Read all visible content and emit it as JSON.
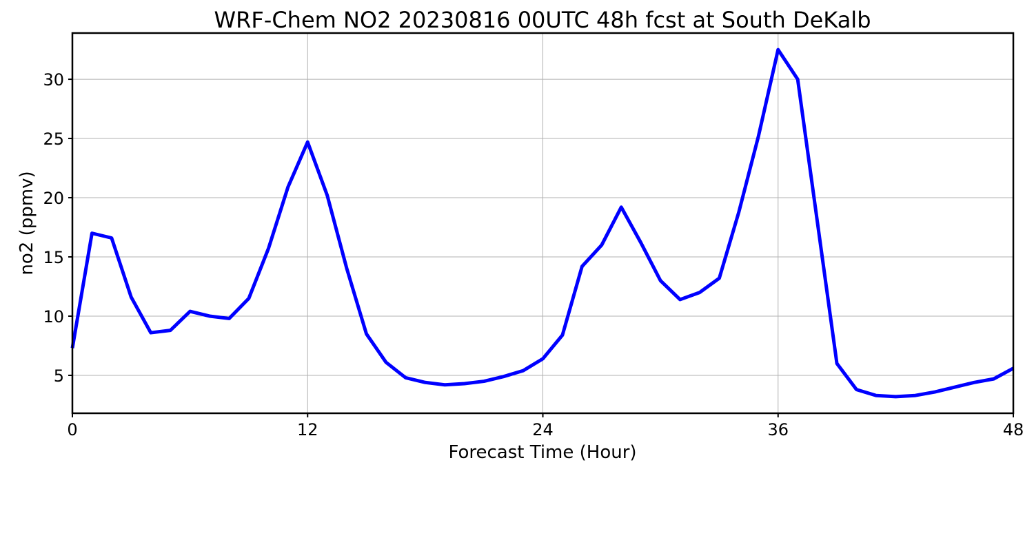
{
  "chart_data": {
    "type": "line",
    "title": "WRF-Chem NO2  20230816 00UTC 48h fcst at South DeKalb",
    "xlabel": "Forecast Time (Hour)",
    "ylabel": "no2  (ppmv)",
    "xlim": [
      0,
      48
    ],
    "ylim": [
      1.8,
      33.9
    ],
    "xticks": [
      0,
      12,
      24,
      36,
      48
    ],
    "yticks": [
      5,
      10,
      15,
      20,
      25,
      30
    ],
    "grid": true,
    "line_color": "#0000ff",
    "series": [
      {
        "x": [
          0,
          1,
          2,
          3,
          4,
          5,
          6,
          7,
          8,
          9,
          10,
          11,
          12,
          13,
          14,
          15,
          16,
          17,
          18,
          19,
          20,
          21,
          22,
          23,
          24,
          25,
          26,
          27,
          28,
          29,
          30,
          31,
          32,
          33,
          34,
          35,
          36,
          37,
          38,
          39,
          40,
          41,
          42,
          43,
          44,
          45,
          46,
          47,
          48
        ],
        "values": [
          7.3,
          17.0,
          16.6,
          11.6,
          8.6,
          8.8,
          10.4,
          10.0,
          9.8,
          11.5,
          15.7,
          20.9,
          24.7,
          20.2,
          14.0,
          8.5,
          6.1,
          4.8,
          4.4,
          4.2,
          4.3,
          4.5,
          4.9,
          5.4,
          6.4,
          8.4,
          14.2,
          16.0,
          19.2,
          16.2,
          13.0,
          11.4,
          12.0,
          13.2,
          18.8,
          25.2,
          32.5,
          30.0,
          18.0,
          6.0,
          3.8,
          3.3,
          3.2,
          3.3,
          3.6,
          4.0,
          4.4,
          4.7,
          5.6
        ]
      }
    ]
  }
}
